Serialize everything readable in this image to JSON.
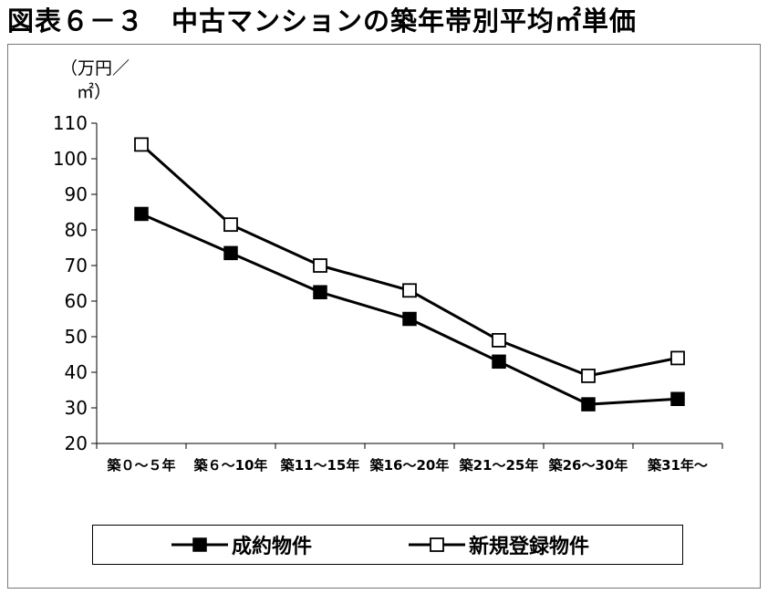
{
  "title": "図表６－３　中古マンションの築年帯別平均㎡単価",
  "chart_data": {
    "type": "line",
    "ylabel_line1": "（万円／",
    "ylabel_line2": "㎡）",
    "ylim": [
      20,
      110
    ],
    "yticks": [
      20,
      30,
      40,
      50,
      60,
      70,
      80,
      90,
      100,
      110
    ],
    "categories": [
      "築０～５年",
      "築６～10年",
      "築11～15年",
      "築16～20年",
      "築21～25年",
      "築26～30年",
      "築31年～"
    ],
    "series": [
      {
        "name": "成約物件",
        "marker": "filled-square",
        "color": "#000000",
        "values": [
          84.5,
          73.5,
          62.5,
          55,
          43,
          31,
          32.5
        ]
      },
      {
        "name": "新規登録物件",
        "marker": "open-square",
        "color": "#000000",
        "values": [
          104,
          81.5,
          70,
          63,
          49,
          39,
          44
        ]
      }
    ],
    "legend_position": "bottom"
  }
}
